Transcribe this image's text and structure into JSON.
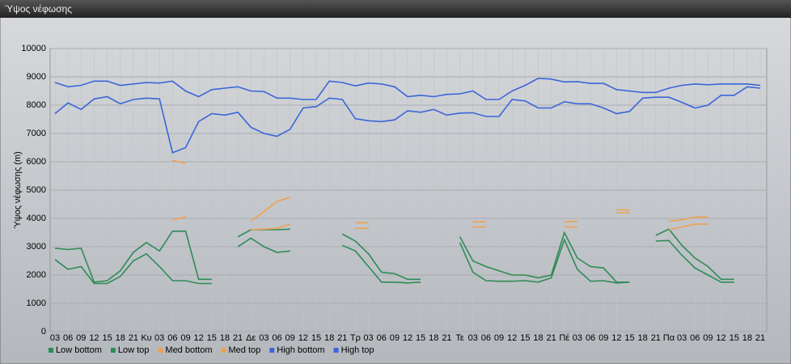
{
  "chart_data": {
    "type": "line",
    "title": "Ύψος νέφωσης",
    "y_label": "Ύψος νέφωσης (m)",
    "categories": [
      "03",
      "06",
      "09",
      "12",
      "15",
      "18",
      "21",
      "Κυ",
      "03",
      "06",
      "09",
      "12",
      "15",
      "18",
      "21",
      "Δε",
      "03",
      "06",
      "09",
      "12",
      "15",
      "18",
      "21",
      "Τρ",
      "03",
      "06",
      "09",
      "12",
      "15",
      "18",
      "21",
      "Τε",
      "03",
      "06",
      "09",
      "12",
      "15",
      "18",
      "21",
      "Πέ",
      "03",
      "06",
      "09",
      "12",
      "15",
      "18",
      "21",
      "Πα",
      "03",
      "06",
      "09",
      "12",
      "15",
      "18",
      "21"
    ],
    "ylim": [
      0,
      10000
    ],
    "yticks": [
      0,
      1000,
      2000,
      3000,
      4000,
      5000,
      6000,
      7000,
      8000,
      9000,
      10000
    ],
    "grid": true,
    "series": [
      {
        "name": "Low bottom",
        "color": "#2e8b57",
        "values": [
          2550,
          2200,
          2300,
          1700,
          1700,
          1950,
          2500,
          2750,
          2300,
          1800,
          1800,
          1700,
          1700,
          null,
          3000,
          3300,
          3000,
          2800,
          2850,
          null,
          null,
          null,
          3050,
          2850,
          2300,
          1750,
          1750,
          1720,
          1750,
          null,
          null,
          3150,
          2100,
          1800,
          1780,
          1780,
          1800,
          1750,
          1900,
          3250,
          2200,
          1780,
          1800,
          1720,
          1750,
          null,
          3200,
          3220,
          2700,
          2250,
          2000,
          1750,
          1750,
          null,
          null
        ]
      },
      {
        "name": "Low top",
        "color": "#2e8b57",
        "values": [
          2950,
          2900,
          2950,
          1750,
          1800,
          2150,
          2800,
          3150,
          2850,
          3550,
          3550,
          1850,
          1850,
          null,
          3350,
          3600,
          3600,
          3600,
          3620,
          null,
          null,
          null,
          3450,
          3200,
          2750,
          2100,
          2050,
          1850,
          1850,
          null,
          null,
          3350,
          2500,
          2300,
          2150,
          2000,
          2000,
          1900,
          2000,
          3500,
          2600,
          2300,
          2250,
          1750,
          1750,
          null,
          3400,
          3620,
          3050,
          2600,
          2300,
          1850,
          1850,
          null,
          null
        ]
      },
      {
        "name": "Med bottom",
        "color": "#f0a050",
        "values": [
          null,
          null,
          null,
          null,
          null,
          null,
          null,
          null,
          null,
          3950,
          4050,
          null,
          null,
          null,
          null,
          3600,
          3620,
          3650,
          3800,
          null,
          null,
          null,
          null,
          3650,
          3650,
          null,
          null,
          null,
          null,
          null,
          null,
          null,
          3700,
          3700,
          null,
          null,
          null,
          null,
          null,
          3700,
          3700,
          null,
          null,
          4200,
          4200,
          null,
          null,
          3600,
          3700,
          3800,
          3800,
          null,
          null,
          null,
          null
        ]
      },
      {
        "name": "Med top",
        "color": "#f0a050",
        "values": [
          null,
          null,
          null,
          null,
          null,
          null,
          null,
          null,
          null,
          6050,
          5950,
          null,
          null,
          null,
          null,
          3900,
          4250,
          4600,
          4750,
          null,
          null,
          null,
          null,
          3850,
          3850,
          null,
          null,
          null,
          null,
          null,
          null,
          null,
          3880,
          3880,
          null,
          null,
          null,
          null,
          null,
          3880,
          3900,
          null,
          null,
          4300,
          4300,
          null,
          null,
          3900,
          3950,
          4050,
          4050,
          null,
          null,
          null,
          null
        ]
      },
      {
        "name": "High bottom",
        "color": "#3a66d8",
        "values": [
          7700,
          8080,
          7850,
          8220,
          8300,
          8050,
          8200,
          8250,
          8220,
          6320,
          6500,
          7420,
          7700,
          7650,
          7750,
          7220,
          7000,
          6900,
          7150,
          7900,
          7950,
          8250,
          8200,
          7520,
          7450,
          7420,
          7480,
          7800,
          7750,
          7850,
          7650,
          7720,
          7730,
          7600,
          7600,
          8200,
          8150,
          7900,
          7900,
          8120,
          8050,
          8050,
          7900,
          7700,
          7780,
          8250,
          8280,
          8280,
          8100,
          7900,
          8000,
          8350,
          8350,
          8650,
          8600
        ]
      },
      {
        "name": "High top",
        "color": "#3a66d8",
        "values": [
          8800,
          8650,
          8700,
          8850,
          8850,
          8700,
          8750,
          8800,
          8780,
          8850,
          8500,
          8300,
          8550,
          8600,
          8650,
          8500,
          8480,
          8250,
          8250,
          8200,
          8200,
          8850,
          8800,
          8680,
          8780,
          8750,
          8650,
          8300,
          8350,
          8300,
          8380,
          8400,
          8500,
          8200,
          8200,
          8500,
          8700,
          8950,
          8920,
          8820,
          8830,
          8770,
          8770,
          8550,
          8500,
          8450,
          8450,
          8600,
          8700,
          8750,
          8720,
          8750,
          8750,
          8750,
          8700
        ]
      }
    ]
  }
}
